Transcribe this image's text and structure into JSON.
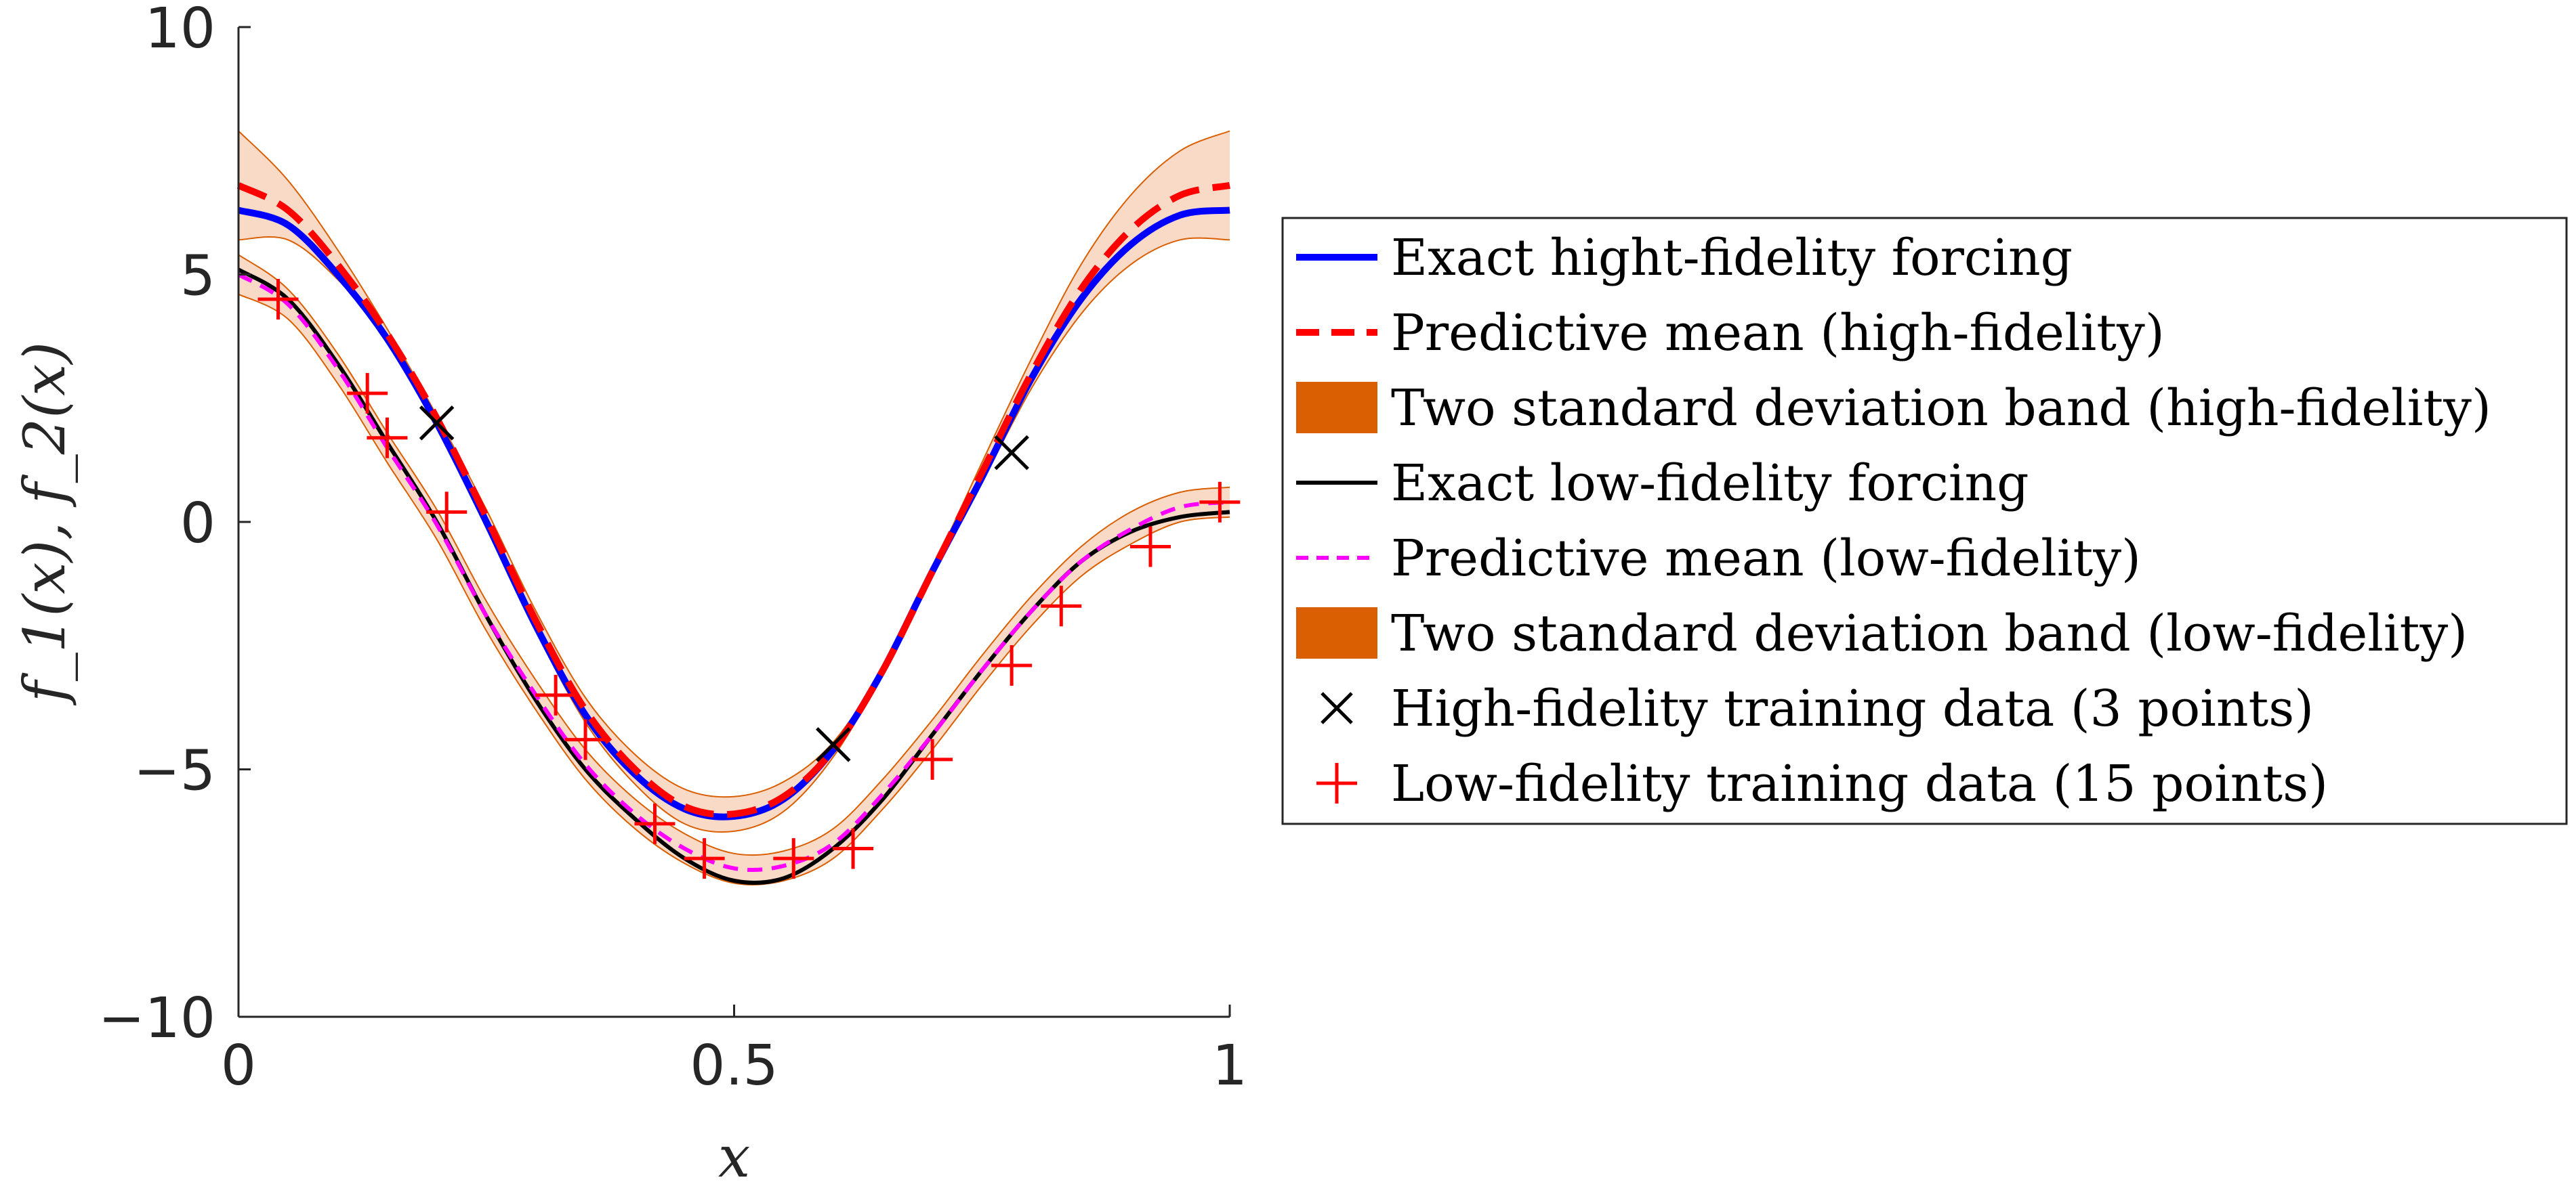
{
  "chart_data": {
    "type": "line",
    "xlabel": "x",
    "ylabel": "f_1(x), f_2(x)",
    "xlim": [
      0,
      1
    ],
    "ylim": [
      -10,
      10
    ],
    "xticks": [
      0,
      0.5,
      1
    ],
    "xtick_labels": [
      "0",
      "0.5",
      "1"
    ],
    "yticks": [
      -10,
      -5,
      0,
      5,
      10
    ],
    "ytick_labels": [
      "−10",
      "−5",
      "0",
      "5",
      "10"
    ],
    "grid": false,
    "legend_position": "right",
    "colors": {
      "high_exact": "#0000ff",
      "high_mean": "#ff0000",
      "band": "#d95f02",
      "band_fill": "#f7d3bd",
      "low_exact": "#000000",
      "low_mean": "#ff00ff",
      "high_train": "#000000",
      "low_train": "#ff0000"
    },
    "series": [
      {
        "name": "Exact hight-fidelity forcing",
        "kind": "line",
        "color": "#0000ff",
        "style": "solid",
        "x": [
          0,
          0.05,
          0.1,
          0.15,
          0.2,
          0.25,
          0.3,
          0.35,
          0.4,
          0.45,
          0.5,
          0.55,
          0.6,
          0.65,
          0.7,
          0.75,
          0.8,
          0.85,
          0.9,
          0.95,
          1.0
        ],
        "y": [
          6.3,
          6.0,
          5.0,
          3.7,
          2.0,
          0.0,
          -2.1,
          -3.9,
          -5.1,
          -5.8,
          -5.95,
          -5.6,
          -4.6,
          -3.0,
          -1.0,
          0.9,
          2.9,
          4.5,
          5.6,
          6.2,
          6.3
        ]
      },
      {
        "name": "Predictive mean (high-fidelity)",
        "kind": "line",
        "color": "#ff0000",
        "style": "dashed",
        "x": [
          0,
          0.05,
          0.1,
          0.15,
          0.2,
          0.25,
          0.3,
          0.35,
          0.4,
          0.45,
          0.5,
          0.55,
          0.6,
          0.65,
          0.7,
          0.75,
          0.8,
          0.85,
          0.9,
          0.95,
          1.0
        ],
        "y": [
          6.8,
          6.3,
          5.2,
          3.8,
          2.1,
          0.1,
          -2.0,
          -3.8,
          -5.0,
          -5.75,
          -5.9,
          -5.55,
          -4.6,
          -3.0,
          -1.0,
          1.0,
          3.0,
          4.7,
          5.9,
          6.6,
          6.8
        ]
      },
      {
        "name": "Two standard deviation band (high-fidelity)",
        "kind": "band",
        "color": "#d95f02",
        "x": [
          0,
          0.05,
          0.1,
          0.15,
          0.2,
          0.25,
          0.3,
          0.35,
          0.4,
          0.45,
          0.5,
          0.55,
          0.6,
          0.65,
          0.7,
          0.75,
          0.8,
          0.85,
          0.9,
          0.95,
          1.0
        ],
        "upper": [
          7.9,
          6.9,
          5.5,
          3.9,
          2.15,
          0.25,
          -1.8,
          -3.55,
          -4.7,
          -5.4,
          -5.55,
          -5.25,
          -4.45,
          -2.95,
          -0.95,
          1.2,
          3.3,
          5.2,
          6.6,
          7.5,
          7.9
        ],
        "lower": [
          5.7,
          5.7,
          4.9,
          3.7,
          2.05,
          -0.05,
          -2.2,
          -4.05,
          -5.3,
          -6.1,
          -6.25,
          -5.85,
          -4.75,
          -3.05,
          -1.05,
          0.8,
          2.7,
          4.2,
          5.2,
          5.7,
          5.7
        ]
      },
      {
        "name": "Exact low-fidelity forcing",
        "kind": "line",
        "color": "#000000",
        "style": "solid",
        "x": [
          0,
          0.05,
          0.1,
          0.15,
          0.2,
          0.25,
          0.3,
          0.35,
          0.4,
          0.45,
          0.5,
          0.55,
          0.6,
          0.65,
          0.7,
          0.75,
          0.8,
          0.85,
          0.9,
          0.95,
          1.0
        ],
        "y": [
          5.1,
          4.5,
          3.2,
          1.6,
          0.0,
          -1.9,
          -3.6,
          -5.0,
          -6.0,
          -6.8,
          -7.25,
          -7.2,
          -6.6,
          -5.6,
          -4.3,
          -3.0,
          -1.8,
          -0.8,
          -0.2,
          0.1,
          0.2
        ]
      },
      {
        "name": "Predictive mean (low-fidelity)",
        "kind": "line",
        "color": "#ff00ff",
        "style": "dashed",
        "x": [
          0,
          0.05,
          0.1,
          0.15,
          0.2,
          0.25,
          0.3,
          0.35,
          0.4,
          0.45,
          0.5,
          0.55,
          0.6,
          0.65,
          0.7,
          0.75,
          0.8,
          0.85,
          0.9,
          0.95,
          1.0
        ],
        "y": [
          5.0,
          4.4,
          3.1,
          1.5,
          -0.05,
          -1.9,
          -3.5,
          -4.9,
          -5.9,
          -6.6,
          -7.0,
          -6.95,
          -6.5,
          -5.5,
          -4.3,
          -3.0,
          -1.8,
          -0.8,
          -0.15,
          0.3,
          0.4
        ]
      },
      {
        "name": "Two standard deviation band (low-fidelity)",
        "kind": "band",
        "color": "#d95f02",
        "x": [
          0,
          0.05,
          0.1,
          0.15,
          0.2,
          0.25,
          0.3,
          0.35,
          0.4,
          0.45,
          0.5,
          0.55,
          0.6,
          0.65,
          0.7,
          0.75,
          0.8,
          0.85,
          0.9,
          0.95,
          1.0
        ],
        "upper": [
          5.4,
          4.7,
          3.4,
          1.8,
          0.25,
          -1.6,
          -3.2,
          -4.6,
          -5.6,
          -6.3,
          -6.7,
          -6.65,
          -6.2,
          -5.2,
          -4.0,
          -2.7,
          -1.5,
          -0.5,
          0.2,
          0.6,
          0.7
        ],
        "lower": [
          4.6,
          4.1,
          2.8,
          1.2,
          -0.35,
          -2.2,
          -3.8,
          -5.2,
          -6.2,
          -6.9,
          -7.3,
          -7.25,
          -6.8,
          -5.8,
          -4.6,
          -3.3,
          -2.1,
          -1.1,
          -0.45,
          0.0,
          0.1
        ]
      },
      {
        "name": "High-fidelity training data (3 points)",
        "kind": "marker",
        "marker": "x",
        "color": "#000000",
        "x": [
          0.2,
          0.6,
          0.78
        ],
        "y": [
          2.0,
          -4.5,
          1.4
        ]
      },
      {
        "name": "Low-fidelity training data (15 points)",
        "kind": "marker",
        "marker": "+",
        "color": "#ff0000",
        "x": [
          0.04,
          0.13,
          0.15,
          0.21,
          0.32,
          0.35,
          0.42,
          0.47,
          0.56,
          0.62,
          0.7,
          0.78,
          0.83,
          0.92,
          0.99
        ],
        "y": [
          4.5,
          2.6,
          1.7,
          0.2,
          -3.5,
          -4.4,
          -6.1,
          -6.8,
          -6.8,
          -6.6,
          -4.8,
          -2.9,
          -1.7,
          -0.5,
          0.4
        ]
      }
    ]
  }
}
